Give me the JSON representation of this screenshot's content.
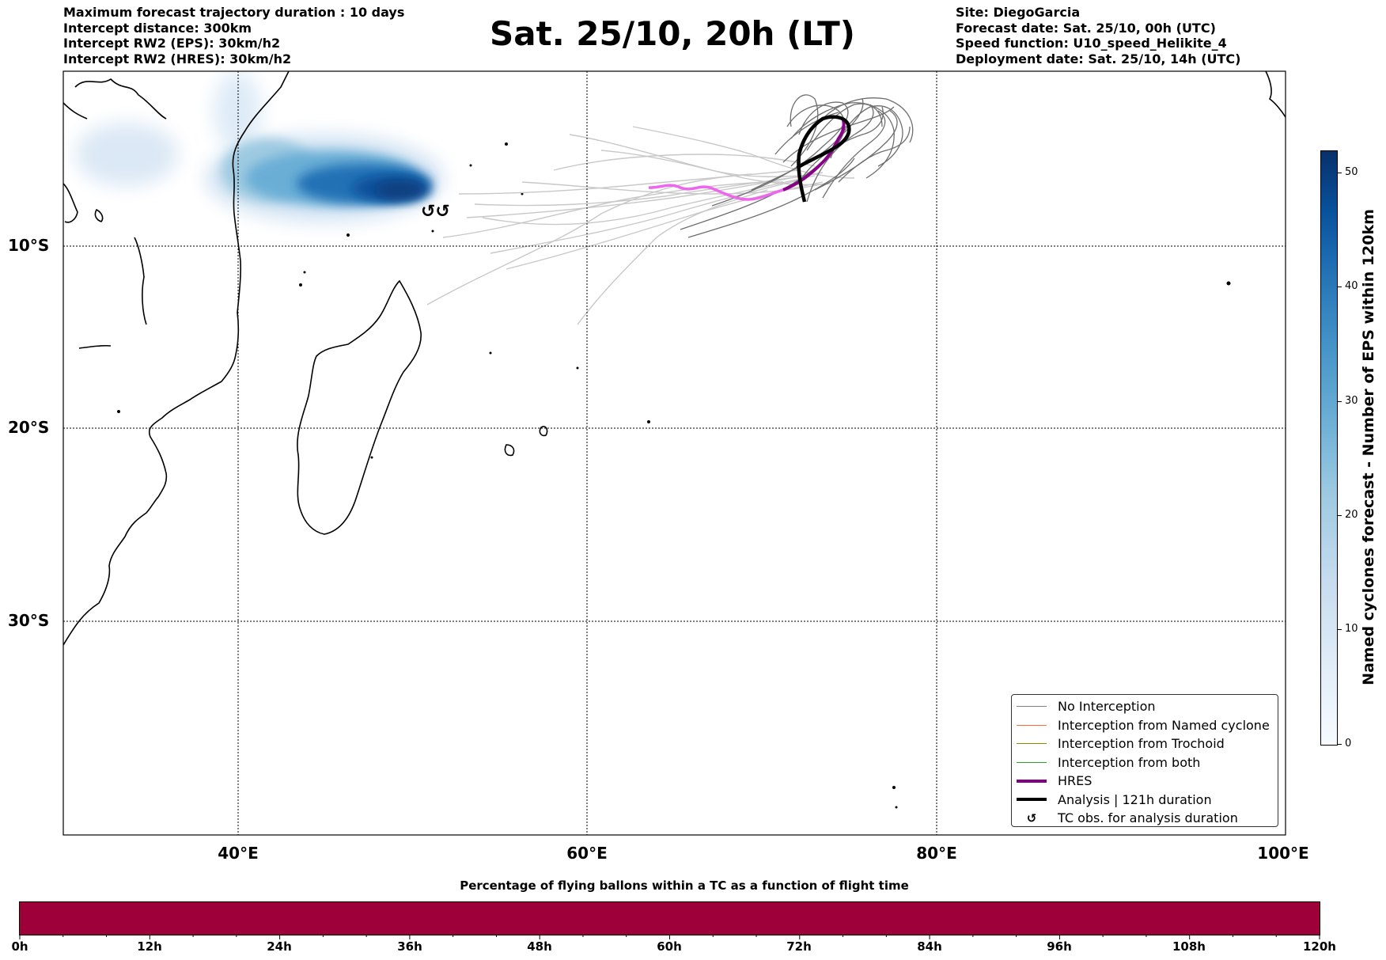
{
  "header": {
    "left": [
      "Maximum forecast trajectory duration : 10 days",
      "Intercept distance: 300km",
      "Intercept RW2 (EPS):  30km/h2",
      "Intercept RW2 (HRES): 30km/h2"
    ],
    "title": "Sat. 25/10, 20h (LT)",
    "right": [
      "Site: DiegoGarcia",
      "Forecast date: Sat. 25/10, 00h (UTC)",
      "Speed function: U10_speed_Helikite_4",
      "Deployment date: Sat. 25/10, 14h (UTC)"
    ]
  },
  "map": {
    "lat_labels": [
      "10°S",
      "20°S",
      "30°S"
    ],
    "lon_labels": [
      "40°E",
      "60°E",
      "80°E",
      "100°E"
    ],
    "gridlines": "dotted",
    "colors": {
      "coastline": "#000000",
      "no_interception": "#808080",
      "hres": "#8b008b",
      "hres_light": "#ee66ee",
      "analysis": "#000000",
      "density": "#08519c"
    },
    "analysis_marker_icon": "tc-symbol"
  },
  "legend": {
    "position": "lower-right",
    "items": [
      {
        "label": "No Interception",
        "color": "#808080",
        "style": "thin"
      },
      {
        "label": "Interception from Named cyclone",
        "color": "#ff6b35",
        "style": "thin"
      },
      {
        "label": "Interception from Trochoid",
        "color": "#8b8b00",
        "style": "thin"
      },
      {
        "label": "Interception from both",
        "color": "#2ca02c",
        "style": "thin"
      },
      {
        "label": "HRES",
        "color": "#800080",
        "style": "thick"
      },
      {
        "label": "Analysis | 121h duration",
        "color": "#000000",
        "style": "thick"
      },
      {
        "label": "TC obs. for analysis duration",
        "color": "#000000",
        "style": "symbol",
        "symbol": "↺"
      }
    ]
  },
  "colorbar": {
    "title": "Named cyclones forecast - Number of EPS within 120km",
    "ticks": [
      "0",
      "10",
      "20",
      "30",
      "40",
      "50"
    ],
    "range": [
      0,
      52
    ]
  },
  "flight_time_bar": {
    "title": "Percentage of flying ballons within a TC as a function of flight time",
    "ticks": [
      "0h",
      "12h",
      "24h",
      "36h",
      "48h",
      "60h",
      "72h",
      "84h",
      "96h",
      "108h",
      "120h"
    ],
    "color": "#9e003a"
  }
}
